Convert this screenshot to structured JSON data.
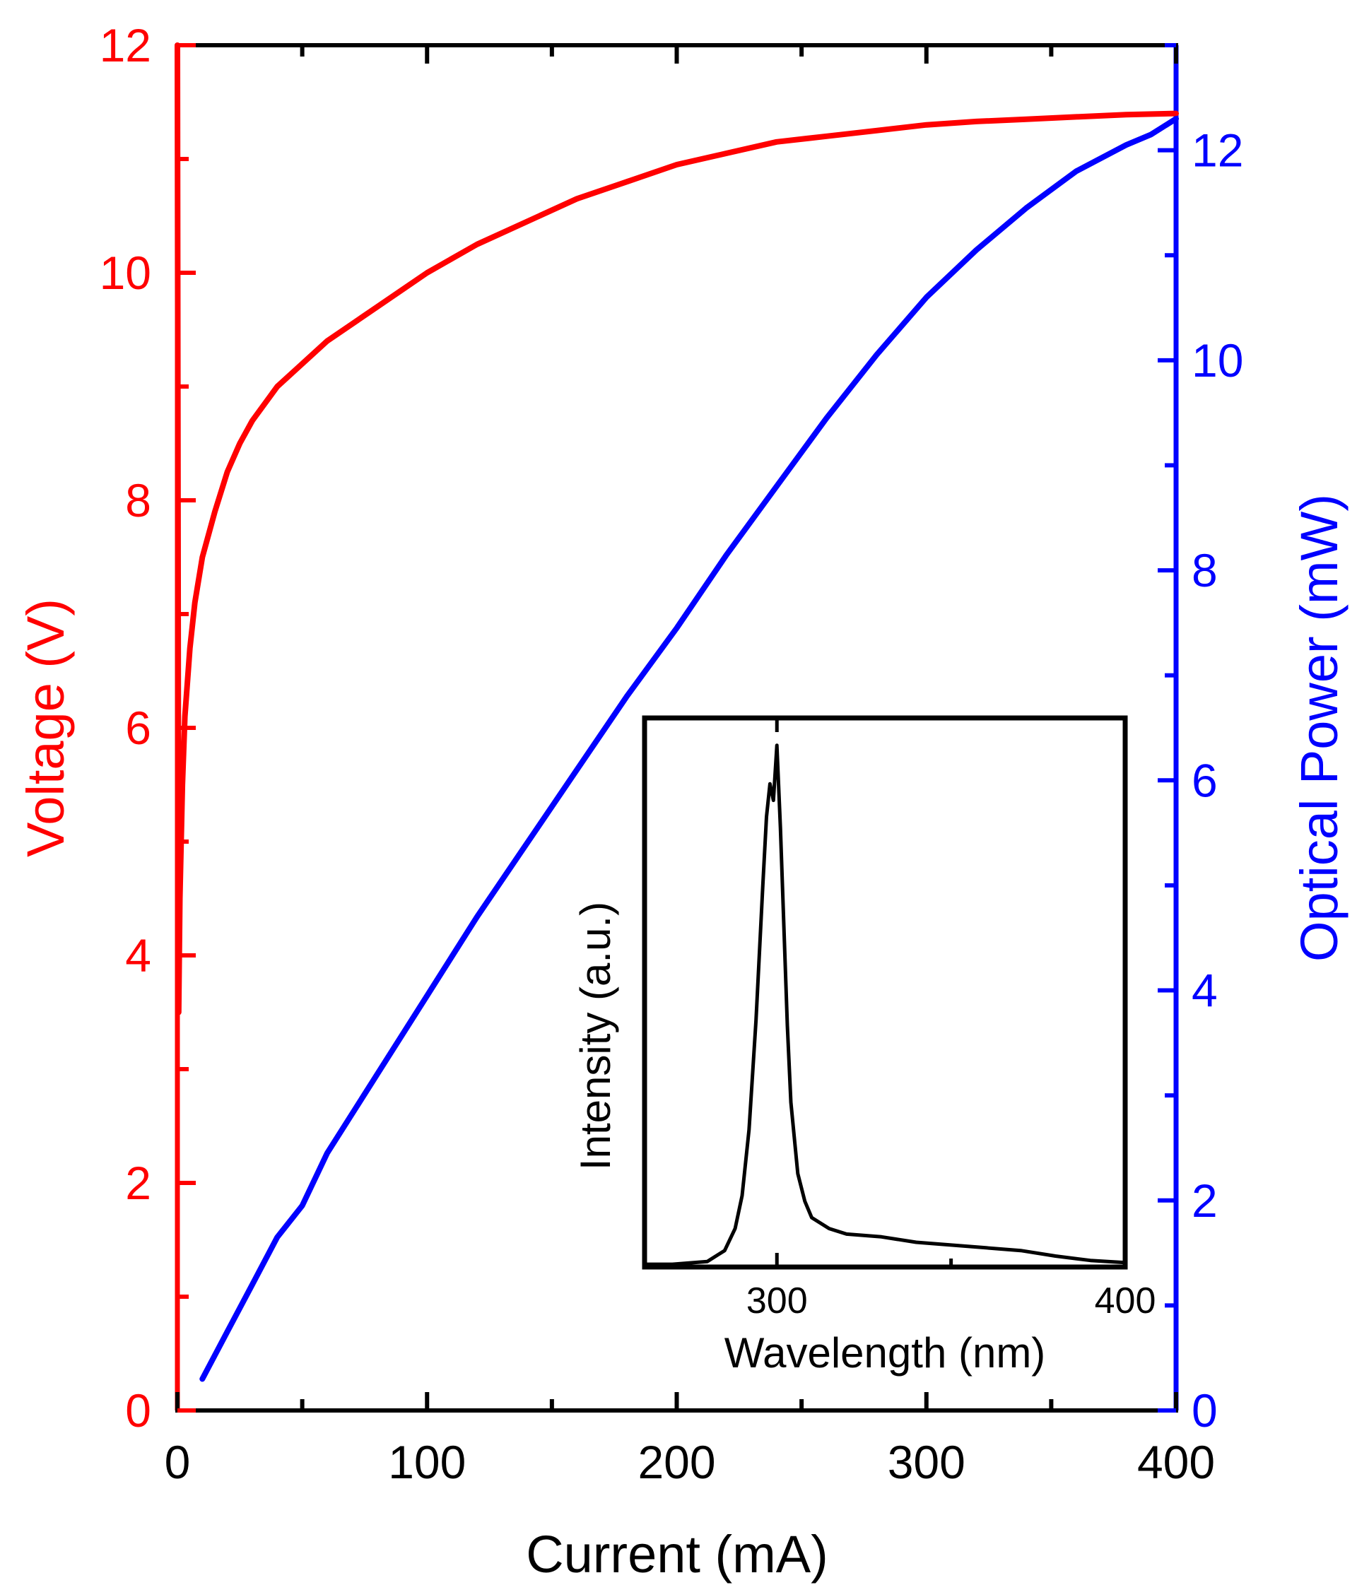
{
  "chart_data": [
    {
      "type": "line",
      "title": "",
      "xlabel": "Current (mA)",
      "ylabel": "Voltage (V)",
      "y2label": "Optical Power (mW)",
      "xlim": [
        0,
        400
      ],
      "ylim": [
        0,
        12
      ],
      "y2lim": [
        0,
        13
      ],
      "xticks": [
        "0",
        "100",
        "200",
        "300",
        "400"
      ],
      "yticks": [
        "0",
        "2",
        "4",
        "6",
        "8",
        "10",
        "12"
      ],
      "y2ticks": [
        "0",
        "2",
        "4",
        "6",
        "8",
        "10",
        "12"
      ],
      "grid": false,
      "legend": "none",
      "colors": {
        "voltage": "#ff0000",
        "power": "#0000ff",
        "frame": "#000000"
      },
      "series": [
        {
          "axis": "left",
          "color": "#ff0000",
          "x": [
            0,
            0.5,
            1,
            2,
            3,
            5,
            7,
            10,
            15,
            20,
            25,
            30,
            40,
            50,
            60,
            70,
            80,
            90,
            100,
            120,
            140,
            160,
            180,
            200,
            220,
            240,
            260,
            280,
            300,
            320,
            340,
            360,
            380,
            400
          ],
          "y": [
            12,
            3.5,
            4.5,
            5.5,
            6.1,
            6.7,
            7.1,
            7.5,
            7.9,
            8.25,
            8.5,
            8.7,
            9.0,
            9.2,
            9.4,
            9.55,
            9.7,
            9.85,
            10.0,
            10.25,
            10.45,
            10.65,
            10.8,
            10.95,
            11.05,
            11.15,
            11.2,
            11.25,
            11.3,
            11.33,
            11.35,
            11.37,
            11.39,
            11.4
          ]
        },
        {
          "axis": "right",
          "color": "#0000ff",
          "x": [
            10,
            20,
            30,
            40,
            50,
            60,
            80,
            100,
            120,
            140,
            160,
            180,
            200,
            220,
            240,
            260,
            280,
            300,
            320,
            340,
            360,
            380,
            390,
            400
          ],
          "y": [
            0.3,
            0.75,
            1.2,
            1.65,
            1.95,
            2.45,
            3.2,
            3.95,
            4.7,
            5.4,
            6.1,
            6.8,
            7.45,
            8.15,
            8.8,
            9.45,
            10.05,
            10.6,
            11.05,
            11.45,
            11.8,
            12.05,
            12.15,
            12.3
          ]
        }
      ]
    },
    {
      "type": "line",
      "title": "",
      "xlabel": "Wavelength (nm)",
      "ylabel": "Intensity (a.u.)",
      "xlim": [
        262,
        400
      ],
      "ylim": [
        0,
        1
      ],
      "xticks": [
        "300",
        "400"
      ],
      "y_ticks_shown": false,
      "series": [
        {
          "color": "#000000",
          "x": [
            262,
            270,
            280,
            285,
            288,
            290,
            292,
            294,
            296,
            297,
            298,
            299,
            300,
            301,
            302,
            303,
            304,
            306,
            308,
            310,
            315,
            320,
            330,
            340,
            350,
            360,
            370,
            380,
            390,
            400
          ],
          "y": [
            0.005,
            0.005,
            0.01,
            0.03,
            0.07,
            0.13,
            0.25,
            0.45,
            0.7,
            0.82,
            0.88,
            0.85,
            0.95,
            0.8,
            0.62,
            0.44,
            0.3,
            0.17,
            0.12,
            0.09,
            0.07,
            0.06,
            0.055,
            0.045,
            0.04,
            0.035,
            0.03,
            0.02,
            0.012,
            0.008
          ]
        }
      ]
    }
  ]
}
